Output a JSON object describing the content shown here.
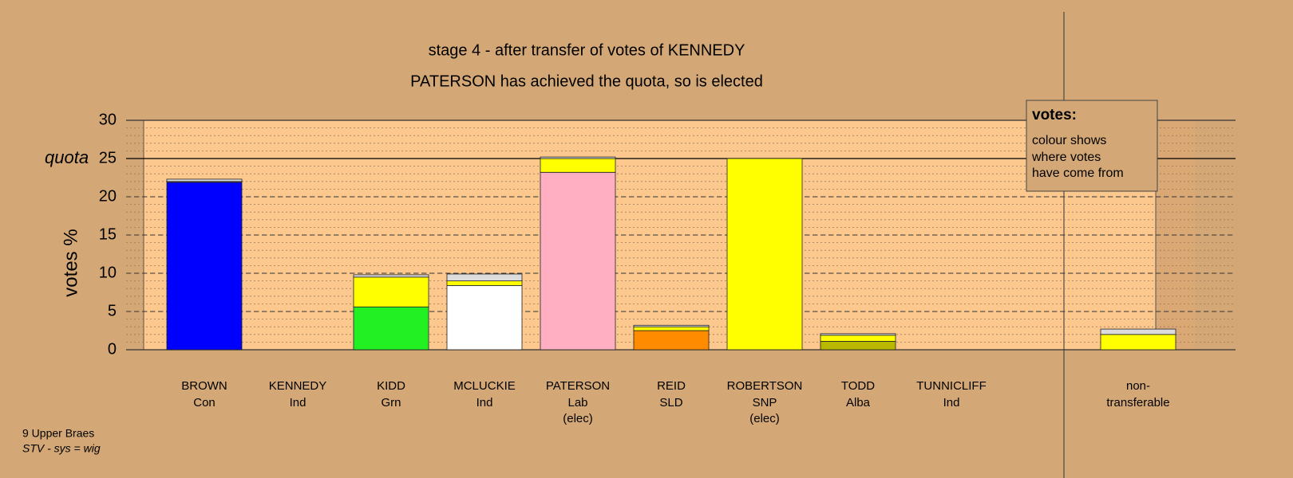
{
  "chart_data": {
    "type": "stacked_bar",
    "title": "stage 4 - after transfer of votes of KENNEDY",
    "subtitle": "PATERSON has achieved the quota, so is elected",
    "y_label": "votes %",
    "categories": [
      "BROWN",
      "KENNEDY",
      "KIDD",
      "MCLUCKIE",
      "PATERSON",
      "REID",
      "ROBERTSON",
      "TODD",
      "TUNNICLIFF",
      null,
      "non-"
    ],
    "parties": [
      "Con",
      "Ind",
      "Grn",
      "Ind",
      "Lab",
      "SLD",
      "SNP",
      "Alba",
      "Ind",
      null,
      "transferable"
    ],
    "status": [
      null,
      null,
      null,
      null,
      "(elec)",
      null,
      "(elec)",
      null,
      null,
      null,
      null
    ],
    "series": [
      {
        "color": "#0000ff",
        "values": [
          21.9,
          0,
          0,
          0,
          0,
          0,
          0,
          0,
          0,
          null,
          0
        ]
      },
      {
        "color": "#22f022",
        "values": [
          0,
          0,
          5.6,
          0,
          0,
          0,
          0,
          0,
          0,
          null,
          0
        ]
      },
      {
        "color": "#ffffff",
        "values": [
          0,
          0,
          0,
          8.4,
          0,
          0,
          0,
          0,
          0,
          null,
          0
        ]
      },
      {
        "color": "#ffafc1",
        "values": [
          0,
          0,
          0,
          0,
          23.2,
          0,
          0,
          0,
          0,
          null,
          0
        ]
      },
      {
        "color": "#ff8c00",
        "values": [
          0,
          0,
          0,
          0,
          0,
          2.5,
          0,
          0,
          0,
          null,
          0
        ]
      },
      {
        "color": "#b8b800",
        "values": [
          0,
          0,
          0,
          0,
          0,
          0,
          0,
          1.1,
          0,
          null,
          0
        ]
      },
      {
        "color": "#ffff00",
        "values": [
          0.1,
          0,
          3.9,
          0.6,
          1.8,
          0.5,
          25.0,
          0.8,
          0,
          null,
          2.0
        ]
      },
      {
        "color": "#dcdcdc",
        "values": [
          0.3,
          0,
          0.3,
          0.9,
          0.2,
          0.2,
          0,
          0.2,
          0,
          null,
          0.7
        ]
      }
    ],
    "ylim": [
      0,
      30
    ],
    "yticks": [
      0,
      5,
      10,
      15,
      20,
      25,
      30
    ],
    "minor_step": 1,
    "quota": {
      "value": 25,
      "label": "quota"
    },
    "grid": true,
    "box_title": "votes:",
    "box_lines": [
      "colour shows",
      "where votes",
      "have come from"
    ],
    "footer": [
      "9 Upper Braes",
      "STV - sys = wig"
    ]
  }
}
